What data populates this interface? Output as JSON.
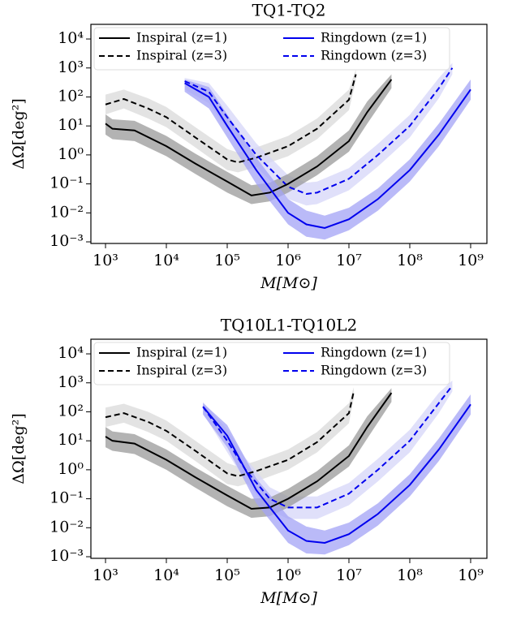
{
  "chart_data": [
    {
      "type": "line",
      "title": "TQ1-TQ2",
      "x_label": "M[M⊙]",
      "y_label": "ΔΩ[deg²]",
      "xscale": "log",
      "yscale": "log",
      "xlim": [
        575,
        1850000000
      ],
      "ylim": [
        0.00088,
        32000
      ],
      "xticks": [
        {
          "value": 1000,
          "label": "10³"
        },
        {
          "value": 10000,
          "label": "10⁴"
        },
        {
          "value": 100000,
          "label": "10⁵"
        },
        {
          "value": 1000000,
          "label": "10⁶"
        },
        {
          "value": 10000000,
          "label": "10⁷"
        },
        {
          "value": 100000000,
          "label": "10⁸"
        },
        {
          "value": 1000000000,
          "label": "10⁹"
        }
      ],
      "yticks": [
        {
          "value": 0.001,
          "label": "10⁻³"
        },
        {
          "value": 0.01,
          "label": "10⁻²"
        },
        {
          "value": 0.1,
          "label": "10⁻¹"
        },
        {
          "value": 1,
          "label": "10⁰"
        },
        {
          "value": 10,
          "label": "10¹"
        },
        {
          "value": 100,
          "label": "10²"
        },
        {
          "value": 1000,
          "label": "10³"
        },
        {
          "value": 10000,
          "label": "10⁴"
        }
      ],
      "series": [
        {
          "name": "Inspiral (z=3)",
          "color": "#000000",
          "dash": true,
          "band_color": "#dadada",
          "x": [
            1000,
            2000,
            5000,
            10000,
            30000,
            100000,
            150000,
            300000,
            1000000,
            3000000,
            10000000,
            13000000
          ],
          "values": [
            55,
            85,
            40,
            20,
            4,
            0.7,
            0.55,
            0.8,
            2,
            8,
            80,
            600
          ],
          "lower": [
            25,
            40,
            18,
            9,
            1.8,
            0.3,
            0.25,
            0.38,
            0.9,
            3.5,
            35,
            350
          ],
          "upper": [
            120,
            180,
            90,
            45,
            9,
            1.6,
            1.2,
            1.8,
            4.5,
            18,
            180,
            900
          ]
        },
        {
          "name": "Ringdown (z=3)",
          "color": "#0000ee",
          "dash": true,
          "band_color": "#d6d6f8",
          "x": [
            20000,
            50000,
            100000,
            300000,
            1000000,
            2000000,
            3000000,
            10000000,
            30000000,
            100000000,
            300000000,
            500000000
          ],
          "values": [
            350,
            150,
            20,
            1,
            0.08,
            0.045,
            0.05,
            0.15,
            1,
            10,
            200,
            1000
          ],
          "lower": [
            180,
            60,
            8,
            0.4,
            0.03,
            0.018,
            0.02,
            0.06,
            0.4,
            4,
            90,
            600
          ],
          "upper": [
            450,
            300,
            50,
            2.5,
            0.2,
            0.11,
            0.12,
            0.35,
            2.4,
            24,
            450,
            1500
          ]
        },
        {
          "name": "Inspiral (z=1)",
          "color": "#000000",
          "dash": false,
          "band_color": "#9a9a9a",
          "x": [
            1000,
            1300,
            3000,
            10000,
            30000,
            100000,
            250000,
            500000,
            1000000,
            3000000,
            10000000,
            20000000,
            50000000
          ],
          "values": [
            12,
            8,
            7,
            2,
            0.5,
            0.12,
            0.04,
            0.05,
            0.1,
            0.4,
            3,
            30,
            400
          ],
          "lower": [
            5,
            3.5,
            3,
            0.9,
            0.22,
            0.05,
            0.02,
            0.025,
            0.05,
            0.2,
            1.3,
            12,
            200
          ],
          "upper": [
            25,
            17,
            15,
            4.5,
            1.1,
            0.26,
            0.09,
            0.11,
            0.22,
            0.9,
            7,
            70,
            600
          ]
        },
        {
          "name": "Ringdown (z=1)",
          "color": "#0000ee",
          "dash": false,
          "band_color": "#a3a3f5",
          "x": [
            20000,
            50000,
            100000,
            300000,
            1000000,
            2000000,
            4000000,
            10000000,
            30000000,
            100000000,
            300000000,
            1000000000
          ],
          "values": [
            300,
            100,
            10,
            0.3,
            0.01,
            0.004,
            0.003,
            0.006,
            0.03,
            0.3,
            5,
            180
          ],
          "lower": [
            150,
            40,
            4,
            0.1,
            0.004,
            0.0015,
            0.0012,
            0.0025,
            0.012,
            0.12,
            2,
            80
          ],
          "upper": [
            400,
            220,
            25,
            0.8,
            0.03,
            0.012,
            0.008,
            0.015,
            0.07,
            0.7,
            12,
            400
          ]
        }
      ]
    },
    {
      "type": "line",
      "title": "TQ10L1-TQ10L2",
      "x_label": "M[M⊙]",
      "y_label": "ΔΩ[deg²]",
      "xscale": "log",
      "yscale": "log",
      "xlim": [
        575,
        1850000000
      ],
      "ylim": [
        0.00088,
        32000
      ],
      "xticks": [
        {
          "value": 1000,
          "label": "10³"
        },
        {
          "value": 10000,
          "label": "10⁴"
        },
        {
          "value": 100000,
          "label": "10⁵"
        },
        {
          "value": 1000000,
          "label": "10⁶"
        },
        {
          "value": 10000000,
          "label": "10⁷"
        },
        {
          "value": 100000000,
          "label": "10⁸"
        },
        {
          "value": 1000000000,
          "label": "10⁹"
        }
      ],
      "yticks": [
        {
          "value": 0.001,
          "label": "10⁻³"
        },
        {
          "value": 0.01,
          "label": "10⁻²"
        },
        {
          "value": 0.1,
          "label": "10⁻¹"
        },
        {
          "value": 1,
          "label": "10⁰"
        },
        {
          "value": 10,
          "label": "10¹"
        },
        {
          "value": 100,
          "label": "10²"
        },
        {
          "value": 1000,
          "label": "10³"
        },
        {
          "value": 10000,
          "label": "10⁴"
        }
      ],
      "series": [
        {
          "name": "Inspiral (z=3)",
          "color": "#000000",
          "dash": true,
          "band_color": "#dadada",
          "x": [
            1000,
            2000,
            5000,
            10000,
            30000,
            100000,
            150000,
            300000,
            1000000,
            3000000,
            10000000,
            12000000
          ],
          "values": [
            65,
            90,
            45,
            22,
            4.5,
            0.75,
            0.6,
            0.9,
            2.2,
            9,
            90,
            500
          ],
          "lower": [
            30,
            42,
            20,
            10,
            2,
            0.32,
            0.27,
            0.4,
            1,
            4,
            40,
            300
          ],
          "upper": [
            140,
            190,
            100,
            50,
            10,
            1.7,
            1.3,
            2,
            5,
            20,
            200,
            700
          ]
        },
        {
          "name": "Ringdown (z=3)",
          "color": "#0000ee",
          "dash": true,
          "band_color": "#d6d6f8",
          "x": [
            40000,
            100000,
            200000,
            500000,
            1000000,
            3000000,
            10000000,
            30000000,
            100000000,
            300000000,
            500000000
          ],
          "values": [
            150,
            10,
            1,
            0.1,
            0.05,
            0.05,
            0.15,
            1,
            10,
            200,
            800
          ],
          "lower": [
            90,
            4,
            0.4,
            0.04,
            0.02,
            0.02,
            0.06,
            0.4,
            4,
            90,
            500
          ],
          "upper": [
            220,
            25,
            2.5,
            0.25,
            0.12,
            0.12,
            0.35,
            2.4,
            24,
            450,
            1200
          ]
        },
        {
          "name": "Inspiral (z=1)",
          "color": "#000000",
          "dash": false,
          "band_color": "#9a9a9a",
          "x": [
            1000,
            1300,
            3000,
            10000,
            30000,
            100000,
            250000,
            500000,
            1000000,
            3000000,
            10000000,
            20000000,
            50000000
          ],
          "values": [
            14,
            10,
            8,
            2.2,
            0.55,
            0.13,
            0.045,
            0.05,
            0.1,
            0.4,
            3,
            30,
            450
          ],
          "lower": [
            6,
            4.5,
            3.5,
            1,
            0.24,
            0.055,
            0.022,
            0.025,
            0.05,
            0.2,
            1.3,
            12,
            220
          ],
          "upper": [
            30,
            21,
            17,
            5,
            1.2,
            0.28,
            0.1,
            0.11,
            0.22,
            0.9,
            7,
            70,
            650
          ]
        },
        {
          "name": "Ringdown (z=1)",
          "color": "#0000ee",
          "dash": false,
          "band_color": "#a3a3f5",
          "x": [
            40000,
            100000,
            300000,
            1000000,
            2000000,
            4000000,
            10000000,
            30000000,
            100000000,
            300000000,
            1000000000
          ],
          "values": [
            150,
            15,
            0.2,
            0.008,
            0.0035,
            0.003,
            0.006,
            0.03,
            0.3,
            5,
            180
          ],
          "lower": [
            80,
            6,
            0.07,
            0.003,
            0.0013,
            0.0012,
            0.0025,
            0.012,
            0.12,
            2,
            80
          ],
          "upper": [
            200,
            35,
            0.5,
            0.025,
            0.011,
            0.008,
            0.015,
            0.07,
            0.7,
            12,
            400
          ]
        }
      ]
    }
  ]
}
